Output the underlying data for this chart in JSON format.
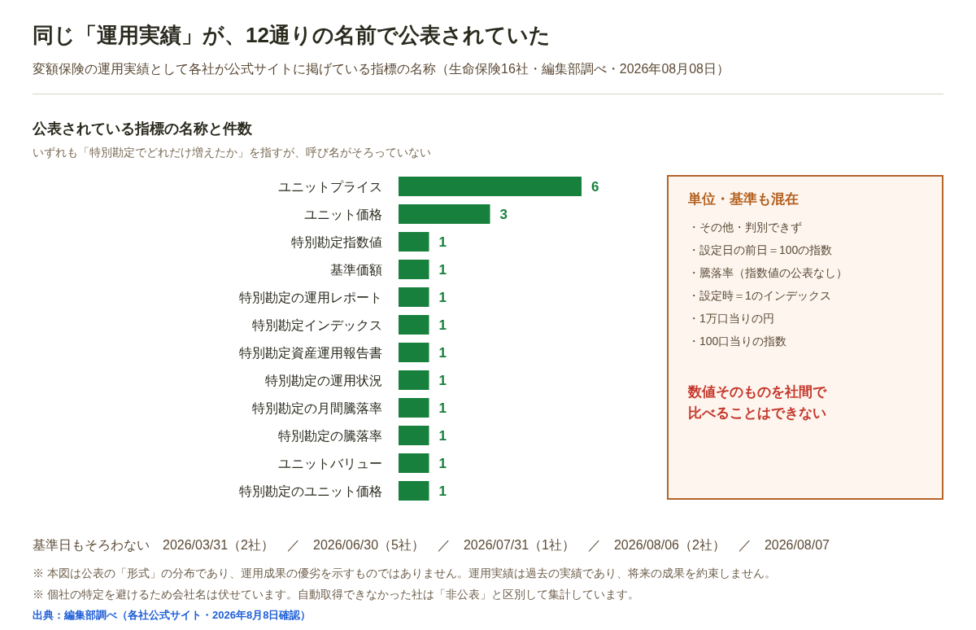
{
  "chart_data": [
    {
      "type": "bar",
      "orientation": "horizontal",
      "title": "同じ「運用実績」が、12通りの名前で公表されていた",
      "subtitle": "変額保険の運用実績として各社が公式サイトに掲げている指標の名称（生命保険16社・編集部調べ・2026年08月08日）",
      "categories": [
        "ユニットプライス",
        "ユニット価格",
        "特別勘定指数値",
        "基準価額",
        "特別勘定の運用レポート",
        "特別勘定インデックス",
        "特別勘定資産運用報告書",
        "特別勘定の運用状況",
        "特別勘定の月間騰落率",
        "特別勘定の騰落率",
        "ユニットバリュー",
        "特別勘定のユニット価格"
      ],
      "values": [
        6,
        3,
        1,
        1,
        1,
        1,
        1,
        1,
        1,
        1,
        1,
        1
      ],
      "color": "#17803d",
      "data_labels": true,
      "annotations": [
        "公表されている指標の名称と件数",
        "いずれも「特別勘定でどれだけ増えたか」を指すが、呼び名がそろっていない",
        "基準日もそろわない　2026/03/31（2社）　／　2026/06/30（5社）　／　2026/07/31（1社）　／　2026/08/06（2社）　／　2026/08/07",
        "※ 本図は公表の「形式」の分布であり、運用成果の優劣を示すものではありません。運用実績は過去の実績であり、将来の成果を約束しません。",
        "※ 個社の特定を避けるため会社名は伏せています。自動取得できなかった社は「非公表」と区別して集計しています。",
        "出典：編集部調べ（各社公式サイト・2026年8月8日確認）"
      ]
    },
    {
      "type": "other",
      "title": "単位・基準も混在",
      "annotations": [
        "・その他・判別できず",
        "・設定日の前日＝100の指数",
        "・騰落率（指数値の公表なし）",
        "・設定時＝1のインデックス",
        "・1万口当りの円",
        "・100口当りの指数",
        "数値そのものを社間で比べることはできない"
      ]
    }
  ]
}
